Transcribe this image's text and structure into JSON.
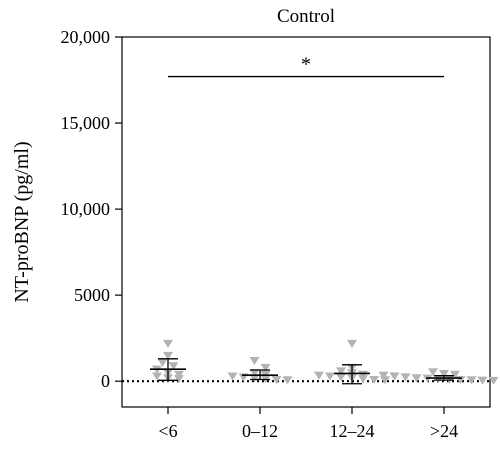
{
  "chart_data": {
    "type": "scatter",
    "title": "Control",
    "xlabel": "",
    "ylabel": "NT-proBNP (pg/ml)",
    "ylim": [
      -1500,
      20000
    ],
    "yticks": [
      0,
      5000,
      10000,
      15000,
      20000
    ],
    "ytick_labels": [
      "0",
      "5000",
      "10,000",
      "15,000",
      "20,000"
    ],
    "categories": [
      "<6",
      "0–12",
      "12–24",
      ">24"
    ],
    "grid": false,
    "legend": "none",
    "reference_line": {
      "y": 0,
      "style": "dotted"
    },
    "significance": {
      "from": "<6",
      "to": ">24",
      "y": 17700,
      "label": "*"
    },
    "point_color": "#b3b3b3",
    "groups": [
      {
        "category": "<6",
        "mean": 700,
        "sd_low": 50,
        "sd_high": 1300,
        "points": [
          2200,
          1500,
          1100,
          900,
          700,
          500,
          400,
          300,
          200,
          150
        ]
      },
      {
        "category": "0–12",
        "mean": 350,
        "sd_low": 100,
        "sd_high": 650,
        "points": [
          1200,
          800,
          500,
          400,
          300,
          250,
          200,
          150,
          100,
          80
        ]
      },
      {
        "category": "12–24",
        "mean": 450,
        "sd_low": -150,
        "sd_high": 950,
        "points": [
          2200,
          800,
          600,
          500,
          400,
          350,
          300,
          250,
          200,
          150,
          100,
          80
        ]
      },
      {
        "category": ">24",
        "mean": 180,
        "sd_low": 60,
        "sd_high": 320,
        "points": [
          550,
          450,
          400,
          350,
          300,
          250,
          200,
          180,
          150,
          120,
          100,
          80,
          60,
          50,
          40
        ]
      }
    ]
  }
}
